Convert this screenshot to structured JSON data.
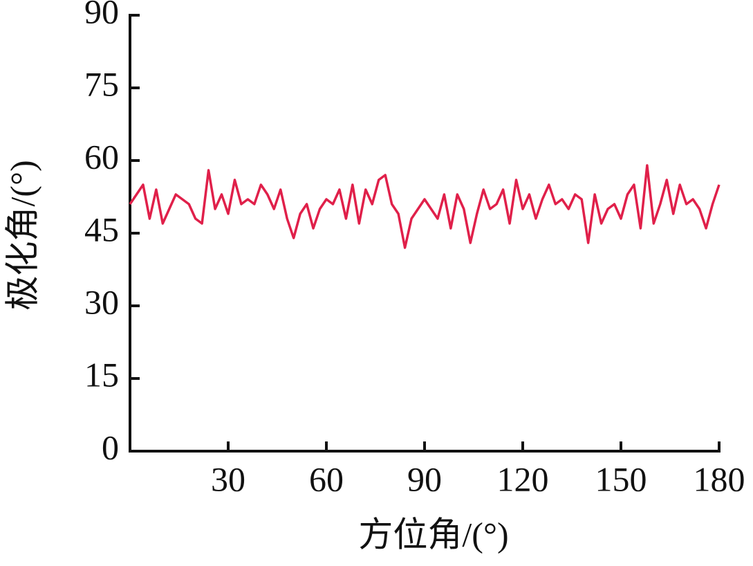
{
  "chart_data": {
    "type": "line",
    "xlabel": "方位角/(°)",
    "ylabel": "极化角/(°)",
    "x": [
      0,
      2,
      4,
      6,
      8,
      10,
      12,
      14,
      16,
      18,
      20,
      22,
      24,
      26,
      28,
      30,
      32,
      34,
      36,
      38,
      40,
      42,
      44,
      46,
      48,
      50,
      52,
      54,
      56,
      58,
      60,
      62,
      64,
      66,
      68,
      70,
      72,
      74,
      76,
      78,
      80,
      82,
      84,
      86,
      88,
      90,
      92,
      94,
      96,
      98,
      100,
      102,
      104,
      106,
      108,
      110,
      112,
      114,
      116,
      118,
      120,
      122,
      124,
      126,
      128,
      130,
      132,
      134,
      136,
      138,
      140,
      142,
      144,
      146,
      148,
      150,
      152,
      154,
      156,
      158,
      160,
      162,
      164,
      166,
      168,
      170,
      172,
      174,
      176,
      178,
      180
    ],
    "series": [
      {
        "color": "#e0204a",
        "values": [
          51,
          53,
          55,
          48,
          54,
          47,
          50,
          53,
          52,
          51,
          48,
          47,
          58,
          50,
          53,
          49,
          56,
          51,
          52,
          51,
          55,
          53,
          50,
          54,
          48,
          44,
          49,
          51,
          46,
          50,
          52,
          51,
          54,
          48,
          55,
          47,
          54,
          51,
          56,
          57,
          51,
          49,
          42,
          48,
          50,
          52,
          50,
          48,
          53,
          46,
          53,
          50,
          43,
          49,
          54,
          50,
          51,
          54,
          47,
          56,
          50,
          53,
          48,
          52,
          55,
          51,
          52,
          50,
          53,
          52,
          43,
          53,
          47,
          50,
          51,
          48,
          53,
          55,
          46,
          59,
          47,
          51,
          56,
          49,
          55,
          51,
          52,
          50,
          46,
          51,
          55
        ]
      }
    ],
    "xlim": [
      0,
      180
    ],
    "xticks": [
      30,
      60,
      90,
      120,
      150,
      180
    ],
    "ylim": [
      0,
      90
    ],
    "yticks": [
      0,
      15,
      30,
      45,
      60,
      75,
      90
    ]
  }
}
